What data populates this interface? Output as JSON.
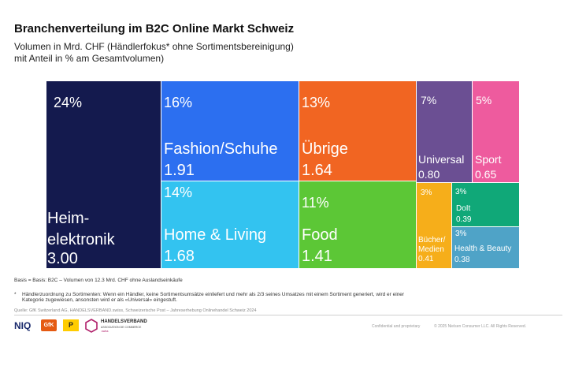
{
  "header": {
    "title": "Branchenverteilung im B2C Online Markt Schweiz",
    "subtitle_line1": "Volumen in Mrd. CHF (Händlerfokus* ohne Sortimentsbereinigung)",
    "subtitle_line2": "mit Anteil in % am Gesamtvolumen)"
  },
  "chart_data": {
    "type": "treemap",
    "title": "Branchenverteilung im B2C Online Markt Schweiz",
    "total_volume": "12.3 Mrd. CHF",
    "items": [
      {
        "label_lines": [
          "Heim-",
          "elektronik"
        ],
        "share": "24%",
        "value": "3.00",
        "share_num": 24,
        "value_num": 3.0,
        "color": "#141a4e"
      },
      {
        "label_lines": [
          "Fashion/Schuhe"
        ],
        "share": "16%",
        "value": "1.91",
        "share_num": 16,
        "value_num": 1.91,
        "color": "#2c6ff0"
      },
      {
        "label_lines": [
          "Home & Living"
        ],
        "share": "14%",
        "value": "1.68",
        "share_num": 14,
        "value_num": 1.68,
        "color": "#33c3f0"
      },
      {
        "label_lines": [
          "Übrige"
        ],
        "share": "13%",
        "value": "1.64",
        "share_num": 13,
        "value_num": 1.64,
        "color": "#f16522"
      },
      {
        "label_lines": [
          "Food"
        ],
        "share": "11%",
        "value": "1.41",
        "share_num": 11,
        "value_num": 1.41,
        "color": "#5cc736"
      },
      {
        "label_lines": [
          "Universal"
        ],
        "share": "7%",
        "value": "0.80",
        "share_num": 7,
        "value_num": 0.8,
        "color": "#6b4f93"
      },
      {
        "label_lines": [
          "Sport"
        ],
        "share": "5%",
        "value": "0.65",
        "share_num": 5,
        "value_num": 0.65,
        "color": "#ee5b9e"
      },
      {
        "label_lines": [
          "Bücher/",
          "Medien"
        ],
        "share": "3%",
        "value": "0.41",
        "share_num": 3,
        "value_num": 0.41,
        "color": "#f6ae1a"
      },
      {
        "label_lines": [
          "DoIt"
        ],
        "share": "3%",
        "value": "0.39",
        "share_num": 3,
        "value_num": 0.39,
        "color": "#10a878"
      },
      {
        "label_lines": [
          "Health & Beauty"
        ],
        "share": "3%",
        "value": "0.38",
        "share_num": 3,
        "value_num": 0.38,
        "color": "#4fa3c7"
      }
    ]
  },
  "notes": {
    "basis": "Basis = Basis: B2C – Volumen von 12.3 Mrd. CHF ohne Auslandseinkäufe",
    "star": "*",
    "footnote_line1": "Händlerzuordnung zu Sortimenten: Wenn ein Händler, keine Sortimentsumsätze einliefert und mehr als 2/3 seines Umsatzes mit einem Sortiment generiert, wird er einer",
    "footnote_line2": "Kategorie zugewiesen, ansonsten wird er als «Universal» eingestuft.",
    "source": "Quelle: GfK Switzerland AG, HANDELSVERBAND.swiss, Schweizerische Post – Jahreserhebung Onlinehandel Schweiz 2024"
  },
  "footer": {
    "confidential": "Confidential and proprietary",
    "copyright": "© 2025 Nielsen Consumer LLC. All Rights Reserved.",
    "logos": {
      "niq": "NIQ",
      "gfk": "GfK",
      "post": "P",
      "handelsverband_line1": "HANDELSVERBAND",
      "handelsverband_line2": "ASSOCIATION DE COMMERCE",
      "handelsverband_line3": ".swiss"
    }
  }
}
